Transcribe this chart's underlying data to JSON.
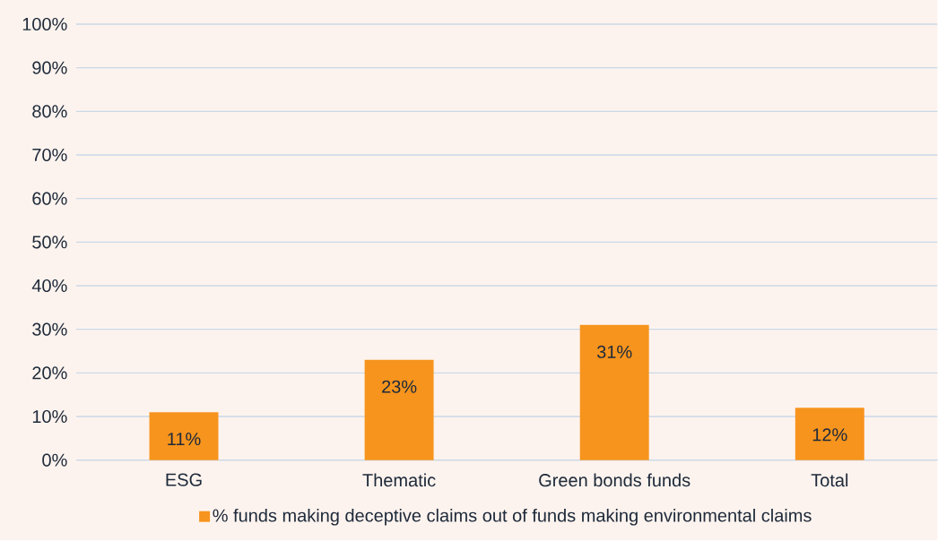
{
  "chart_data": {
    "type": "bar",
    "categories": [
      "ESG",
      "Thematic",
      "Green bonds funds",
      "Total"
    ],
    "series": [
      {
        "name": "% funds making deceptive claims out of funds making environmental claims",
        "color": "#f7941d",
        "values": [
          11,
          23,
          31,
          12
        ]
      }
    ],
    "value_labels": [
      "11%",
      "23%",
      "31%",
      "12%"
    ],
    "ylim": [
      0,
      100
    ],
    "yticks": [
      {
        "value": 0,
        "label": "0%"
      },
      {
        "value": 10,
        "label": "10%"
      },
      {
        "value": 20,
        "label": "20%"
      },
      {
        "value": 30,
        "label": "30%"
      },
      {
        "value": 40,
        "label": "40%"
      },
      {
        "value": 50,
        "label": "50%"
      },
      {
        "value": 60,
        "label": "60%"
      },
      {
        "value": 70,
        "label": "70%"
      },
      {
        "value": 80,
        "label": "80%"
      },
      {
        "value": 90,
        "label": "90%"
      },
      {
        "value": 100,
        "label": "100%"
      }
    ],
    "grid": "y",
    "legend": "bottom"
  }
}
